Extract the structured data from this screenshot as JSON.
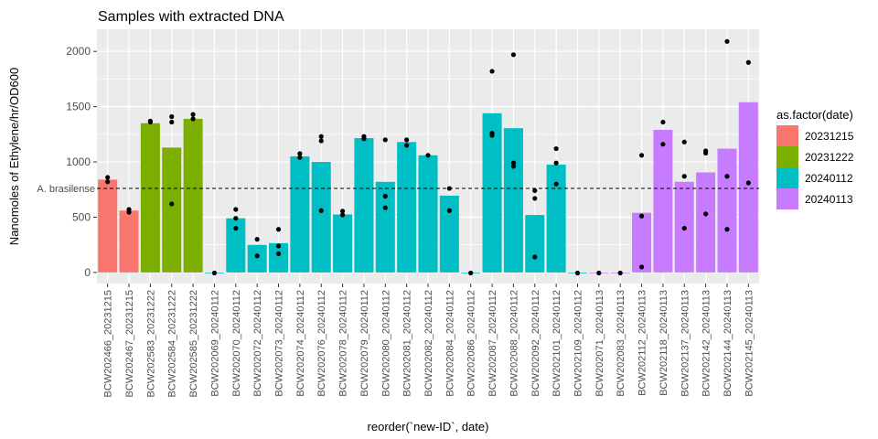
{
  "chart_data": {
    "type": "bar",
    "title": "Samples with extracted DNA",
    "xlabel": "reorder(`new-ID`, date)",
    "ylabel": "Nanomoles of Ethylene/hr/OD600",
    "ylim": [
      -100,
      2200
    ],
    "yticks": [
      0,
      500,
      1000,
      1500,
      2000
    ],
    "grid": true,
    "legend": {
      "title": "as.factor(date)",
      "position": "right",
      "entries": [
        {
          "label": "20231215",
          "color": "#F8766D"
        },
        {
          "label": "20231222",
          "color": "#7CAE00"
        },
        {
          "label": "20240112",
          "color": "#00BFC4"
        },
        {
          "label": "20240113",
          "color": "#C77CFF"
        }
      ]
    },
    "reference_line": {
      "label": "A. brasilense",
      "value": 760,
      "style": "dashed"
    },
    "bars": [
      {
        "label": "BCW202466_20231215",
        "group": "20231215",
        "value": 840,
        "points": [
          820,
          860
        ]
      },
      {
        "label": "BCW202467_20231215",
        "group": "20231215",
        "value": 560,
        "points": [
          545,
          570
        ]
      },
      {
        "label": "BCW202583_20231222",
        "group": "20231222",
        "value": 1350,
        "points": [
          1360,
          1370
        ]
      },
      {
        "label": "BCW202584_20231222",
        "group": "20231222",
        "value": 1130,
        "points": [
          620,
          1360,
          1410
        ]
      },
      {
        "label": "BCW202585_20231222",
        "group": "20231222",
        "value": 1390,
        "points": [
          1390,
          1430
        ]
      },
      {
        "label": "BCW202069_20240112",
        "group": "20240112",
        "value": -5,
        "points": [
          -5
        ]
      },
      {
        "label": "BCW202070_20240112",
        "group": "20240112",
        "value": 490,
        "points": [
          400,
          490,
          570
        ]
      },
      {
        "label": "BCW202072_20240112",
        "group": "20240112",
        "value": 250,
        "points": [
          150,
          300
        ]
      },
      {
        "label": "BCW202073_20240112",
        "group": "20240112",
        "value": 265,
        "points": [
          170,
          240,
          390
        ]
      },
      {
        "label": "BCW202074_20240112",
        "group": "20240112",
        "value": 1050,
        "points": [
          1040,
          1075
        ]
      },
      {
        "label": "BCW202076_20240112",
        "group": "20240112",
        "value": 1000,
        "points": [
          560,
          1190,
          1230
        ]
      },
      {
        "label": "BCW202078_20240112",
        "group": "20240112",
        "value": 525,
        "points": [
          520,
          555
        ]
      },
      {
        "label": "BCW202079_20240112",
        "group": "20240112",
        "value": 1215,
        "points": [
          1210,
          1230
        ]
      },
      {
        "label": "BCW202080_20240112",
        "group": "20240112",
        "value": 820,
        "points": [
          585,
          690,
          1200
        ]
      },
      {
        "label": "BCW202081_20240112",
        "group": "20240112",
        "value": 1180,
        "points": [
          1150,
          1200
        ]
      },
      {
        "label": "BCW202082_20240112",
        "group": "20240112",
        "value": 1060,
        "points": [
          1060
        ]
      },
      {
        "label": "BCW202084_20240112",
        "group": "20240112",
        "value": 695,
        "points": [
          560,
          760
        ]
      },
      {
        "label": "BCW202086_20240112",
        "group": "20240112",
        "value": -5,
        "points": [
          -5
        ]
      },
      {
        "label": "BCW202087_20240112",
        "group": "20240112",
        "value": 1440,
        "points": [
          1240,
          1260,
          1820
        ]
      },
      {
        "label": "BCW202088_20240112",
        "group": "20240112",
        "value": 1305,
        "points": [
          960,
          990,
          1970
        ]
      },
      {
        "label": "BCW202092_20240112",
        "group": "20240112",
        "value": 520,
        "points": [
          140,
          670,
          740
        ]
      },
      {
        "label": "BCW202101_20240112",
        "group": "20240112",
        "value": 975,
        "points": [
          800,
          990,
          1120
        ]
      },
      {
        "label": "BCW202109_20240112",
        "group": "20240112",
        "value": -5,
        "points": [
          -5
        ]
      },
      {
        "label": "BCW202071_20240113",
        "group": "20240113",
        "value": -5,
        "points": [
          -5
        ]
      },
      {
        "label": "BCW202083_20240113",
        "group": "20240113",
        "value": -5,
        "points": [
          -5
        ]
      },
      {
        "label": "BCW202112_20240113",
        "group": "20240113",
        "value": 540,
        "points": [
          50,
          510,
          1060
        ]
      },
      {
        "label": "BCW202118_20240113",
        "group": "20240113",
        "value": 1290,
        "points": [
          1160,
          1360
        ]
      },
      {
        "label": "BCW202137_20240113",
        "group": "20240113",
        "value": 820,
        "points": [
          400,
          870,
          1180
        ]
      },
      {
        "label": "BCW202142_20240113",
        "group": "20240113",
        "value": 905,
        "points": [
          530,
          1080,
          1100
        ]
      },
      {
        "label": "BCW202144_20240113",
        "group": "20240113",
        "value": 1120,
        "points": [
          390,
          870,
          2090
        ]
      },
      {
        "label": "BCW202145_20240113",
        "group": "20240113",
        "value": 1540,
        "points": [
          810,
          1900
        ]
      }
    ]
  }
}
